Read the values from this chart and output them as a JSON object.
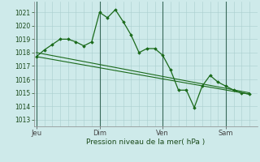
{
  "background_color": "#ceeaea",
  "grid_color": "#aacece",
  "line_color": "#1a6a1a",
  "marker_color": "#1a6a1a",
  "xlabel": "Pression niveau de la mer( hPa )",
  "ylim": [
    1012.5,
    1021.8
  ],
  "yticks": [
    1013,
    1014,
    1015,
    1016,
    1017,
    1018,
    1019,
    1020,
    1021
  ],
  "xtick_labels": [
    "Jeu",
    "Dim",
    "Ven",
    "Sam"
  ],
  "xtick_positions": [
    0,
    48,
    96,
    144
  ],
  "vline_positions": [
    0,
    48,
    96,
    144
  ],
  "series1": {
    "x": [
      0,
      6,
      12,
      18,
      24,
      30,
      36,
      42,
      48,
      54,
      60,
      66,
      72,
      78,
      84,
      90,
      96,
      102,
      108,
      114,
      120,
      126,
      132,
      138,
      144,
      150,
      156,
      162
    ],
    "y": [
      1017.7,
      1018.2,
      1018.6,
      1019.0,
      1019.0,
      1018.8,
      1018.5,
      1018.8,
      1021.0,
      1020.6,
      1021.2,
      1020.3,
      1019.3,
      1018.0,
      1018.3,
      1018.3,
      1017.8,
      1016.7,
      1015.2,
      1015.2,
      1013.9,
      1015.5,
      1016.3,
      1015.8,
      1015.5,
      1015.2,
      1015.0,
      1014.9
    ]
  },
  "series2": {
    "x": [
      0,
      162
    ],
    "y": [
      1018.0,
      1015.0
    ]
  },
  "series3": {
    "x": [
      0,
      162
    ],
    "y": [
      1017.7,
      1014.9
    ]
  },
  "total_hours": 168,
  "minor_x_step": 6
}
